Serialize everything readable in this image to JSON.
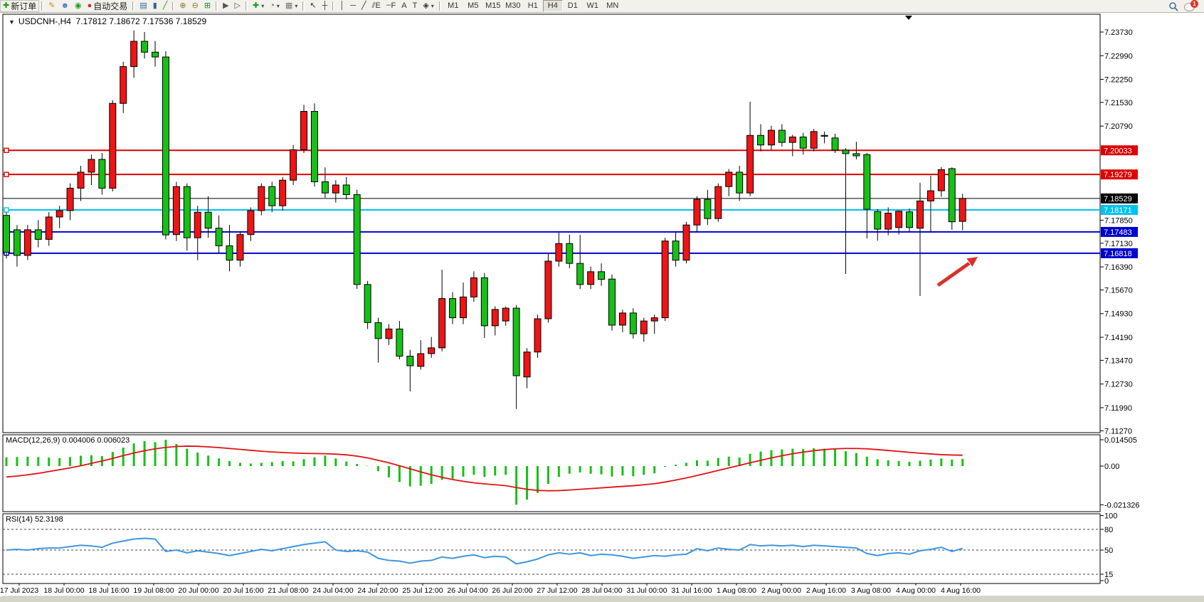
{
  "toolbar": {
    "buttons": [
      {
        "type": "button",
        "name": "new-order",
        "glyph": "✚",
        "glyph_color": "#1a9c1a",
        "label": "新订单"
      },
      {
        "type": "sep"
      },
      {
        "type": "button",
        "name": "styler",
        "glyph": "✎",
        "glyph_color": "#c09010"
      },
      {
        "type": "button",
        "name": "profile",
        "glyph": "☻",
        "glyph_color": "#4d82c4"
      },
      {
        "type": "button",
        "name": "signal",
        "glyph": "◉",
        "glyph_color": "#18a018"
      },
      {
        "type": "button",
        "name": "auto-trading",
        "glyph": "●",
        "glyph_color": "#c43022",
        "label": "自动交易"
      },
      {
        "type": "sep"
      },
      {
        "type": "button",
        "name": "bar-chart",
        "glyph": "▤",
        "glyph_color": "#336699"
      },
      {
        "type": "button",
        "name": "candlestick-chart",
        "glyph": "▮",
        "glyph_color": "#336699"
      },
      {
        "type": "button",
        "name": "line-chart",
        "glyph": "╱",
        "glyph_color": "#1a9c1a"
      },
      {
        "type": "sep"
      },
      {
        "type": "button",
        "name": "zoom-in",
        "glyph": "⊕",
        "glyph_color": "#8a7a20"
      },
      {
        "type": "button",
        "name": "zoom-out",
        "glyph": "⊖",
        "glyph_color": "#8a7a20"
      },
      {
        "type": "button",
        "name": "tile-windows",
        "glyph": "⊞",
        "glyph_color": "#2a8a2a"
      },
      {
        "type": "sep"
      },
      {
        "type": "button",
        "name": "auto-scroll",
        "glyph": "▶",
        "glyph_color": "#555"
      },
      {
        "type": "button",
        "name": "chart-shift",
        "glyph": "▷",
        "glyph_color": "#555"
      },
      {
        "type": "sep"
      },
      {
        "type": "button",
        "name": "indicators",
        "glyph": "✚",
        "glyph_color": "#1a9c1a",
        "caret": "▾"
      },
      {
        "type": "button",
        "name": "periods",
        "glyph": "◔",
        "glyph_color": "#2b5fa8",
        "caret": "▾"
      },
      {
        "type": "button",
        "name": "templates",
        "glyph": "▦",
        "glyph_color": "#777",
        "caret": "▾"
      },
      {
        "type": "sep"
      },
      {
        "type": "button",
        "name": "cursor",
        "glyph": "↖",
        "glyph_color": "#333"
      },
      {
        "type": "button",
        "name": "crosshair",
        "glyph": "┼",
        "glyph_color": "#333"
      },
      {
        "type": "sep"
      },
      {
        "type": "button",
        "name": "vertical-line",
        "glyph": "│",
        "glyph_color": "#333"
      },
      {
        "type": "button",
        "name": "horizontal-line",
        "glyph": "─",
        "glyph_color": "#333"
      },
      {
        "type": "button",
        "name": "trendline",
        "glyph": "╱",
        "glyph_color": "#333"
      },
      {
        "type": "button",
        "name": "equidistant-channel",
        "glyph": "⫽E",
        "glyph_color": "#333"
      },
      {
        "type": "button",
        "name": "fibonacci",
        "glyph": "┄F",
        "glyph_color": "#333"
      },
      {
        "type": "button",
        "name": "text",
        "glyph": "A",
        "glyph_color": "#333"
      },
      {
        "type": "button",
        "name": "text-label",
        "glyph": "T",
        "glyph_color": "#333"
      },
      {
        "type": "button",
        "name": "arrows",
        "glyph": "◈",
        "glyph_color": "#333",
        "caret": "▾"
      },
      {
        "type": "sep"
      }
    ],
    "timeframes": [
      "M1",
      "M5",
      "M15",
      "M30",
      "H1",
      "H4",
      "D1",
      "W1",
      "MN"
    ],
    "active_timeframe": "H4",
    "notification_badge": "1"
  },
  "chart": {
    "dropdown_marker": "▼",
    "title_symbol": "USDCNH-,H4",
    "title_ohlc": "7.17812 7.18672 7.17536 7.18529"
  },
  "chart_data": {
    "type": "candlestick",
    "symbol": "USDCNH-",
    "timeframe": "H4",
    "current_bar": {
      "open": 7.17812,
      "high": 7.18672,
      "low": 7.17536,
      "close": 7.18529
    },
    "colors": {
      "bull": "#f01414",
      "bear": "#16c116",
      "wick": "#000000",
      "hline_red": "#dd0000",
      "hline_cyan": "#00c2ee",
      "hline_blue": "#0000cc",
      "bid_line": "#3a3a3a",
      "tag_black": "#000000",
      "macd_hist": "#16c116",
      "macd_signal": "#e01212",
      "rsi_line": "#3e96e0",
      "arrow": "#d9302c"
    },
    "y_axis": {
      "ticks": [
        "7.23730",
        "7.22990",
        "7.22250",
        "7.21530",
        "7.20790",
        "7.17850",
        "7.17130",
        "7.16390",
        "7.15670",
        "7.14930",
        "7.14190",
        "7.13470",
        "7.12730",
        "7.11990",
        "7.11270"
      ]
    },
    "horizontal_lines": [
      {
        "price": 7.20033,
        "label": "7.20033",
        "color": "#dd0000",
        "text": "#ffffff"
      },
      {
        "price": 7.19279,
        "label": "7.19279",
        "color": "#dd0000",
        "text": "#ffffff"
      },
      {
        "price": 7.18529,
        "label": "7.18529",
        "color": "#000000",
        "text": "#ffffff",
        "bid": true
      },
      {
        "price": 7.18171,
        "label": "7.18171",
        "color": "#00c2ee",
        "text": "#ffffff"
      },
      {
        "price": 7.17483,
        "label": "7.17483",
        "color": "#0000cc",
        "text": "#ffffff"
      },
      {
        "price": 7.16818,
        "label": "7.16818",
        "color": "#0000cc",
        "text": "#ffffff"
      }
    ],
    "candles": [
      [
        7.18,
        7.181,
        7.1665,
        7.1685
      ],
      [
        7.1755,
        7.177,
        7.164,
        7.1675
      ],
      [
        7.1675,
        7.177,
        7.166,
        7.1755
      ],
      [
        7.1755,
        7.1785,
        7.17,
        7.1725
      ],
      [
        7.1725,
        7.181,
        7.1705,
        7.1795
      ],
      [
        7.1795,
        7.183,
        7.176,
        7.1815
      ],
      [
        7.1815,
        7.19,
        7.1785,
        7.1885
      ],
      [
        7.1885,
        7.1955,
        7.1845,
        7.1935
      ],
      [
        7.1935,
        7.199,
        7.1895,
        7.1975
      ],
      [
        7.1975,
        7.1995,
        7.1865,
        7.1885
      ],
      [
        7.1885,
        7.216,
        7.1875,
        7.215
      ],
      [
        7.215,
        7.228,
        7.212,
        7.2265
      ],
      [
        7.2265,
        7.2378,
        7.223,
        7.2344
      ],
      [
        7.2344,
        7.2373,
        7.229,
        7.231
      ],
      [
        7.231,
        7.2345,
        7.2265,
        7.2295
      ],
      [
        7.2295,
        7.2313,
        7.1725,
        7.1739
      ],
      [
        7.174,
        7.1905,
        7.172,
        7.189
      ],
      [
        7.189,
        7.19,
        7.169,
        7.173
      ],
      [
        7.173,
        7.183,
        7.166,
        7.181
      ],
      [
        7.181,
        7.186,
        7.173,
        7.176
      ],
      [
        7.176,
        7.18,
        7.168,
        7.1705
      ],
      [
        7.1705,
        7.177,
        7.1625,
        7.166
      ],
      [
        7.166,
        7.175,
        7.164,
        7.174
      ],
      [
        7.174,
        7.1825,
        7.172,
        7.1815
      ],
      [
        7.1815,
        7.19,
        7.18,
        7.189
      ],
      [
        7.189,
        7.1905,
        7.181,
        7.183
      ],
      [
        7.183,
        7.192,
        7.1815,
        7.191
      ],
      [
        7.191,
        7.202,
        7.1895,
        7.2005
      ],
      [
        7.2005,
        7.2145,
        7.1995,
        7.2125
      ],
      [
        7.2125,
        7.215,
        7.189,
        7.1905
      ],
      [
        7.1905,
        7.195,
        7.1855,
        7.187
      ],
      [
        7.187,
        7.191,
        7.184,
        7.1895
      ],
      [
        7.1895,
        7.192,
        7.185,
        7.1865
      ],
      [
        7.1865,
        7.188,
        7.157,
        7.1584
      ],
      [
        7.1584,
        7.1595,
        7.1445,
        7.1465
      ],
      [
        7.1465,
        7.148,
        7.134,
        7.1415
      ],
      [
        7.1415,
        7.146,
        7.1395,
        7.1445
      ],
      [
        7.1445,
        7.147,
        7.135,
        7.136
      ],
      [
        7.136,
        7.138,
        7.125,
        7.133
      ],
      [
        7.1328,
        7.141,
        7.1318,
        7.1368
      ],
      [
        7.1368,
        7.142,
        7.1355,
        7.1386
      ],
      [
        7.1386,
        7.163,
        7.1375,
        7.154
      ],
      [
        7.154,
        7.156,
        7.146,
        7.148
      ],
      [
        7.148,
        7.159,
        7.146,
        7.1545
      ],
      [
        7.1545,
        7.1625,
        7.153,
        7.1605
      ],
      [
        7.1605,
        7.162,
        7.1417,
        7.1455
      ],
      [
        7.1455,
        7.1516,
        7.1425,
        7.1506
      ],
      [
        7.147,
        7.1515,
        7.1455,
        7.151
      ],
      [
        7.151,
        7.152,
        7.1195,
        7.1299
      ],
      [
        7.1295,
        7.1385,
        7.126,
        7.1373
      ],
      [
        7.1373,
        7.149,
        7.1355,
        7.1477
      ],
      [
        7.1477,
        7.168,
        7.1465,
        7.1657
      ],
      [
        7.1657,
        7.1746,
        7.164,
        7.1712
      ],
      [
        7.1712,
        7.174,
        7.1635,
        7.165
      ],
      [
        7.165,
        7.1739,
        7.157,
        7.1584
      ],
      [
        7.1584,
        7.164,
        7.157,
        7.1624
      ],
      [
        7.1624,
        7.165,
        7.158,
        7.16
      ],
      [
        7.1601,
        7.1615,
        7.144,
        7.1457
      ],
      [
        7.1457,
        7.1505,
        7.1435,
        7.1495
      ],
      [
        7.1495,
        7.151,
        7.1415,
        7.143
      ],
      [
        7.143,
        7.148,
        7.1405,
        7.147
      ],
      [
        7.147,
        7.149,
        7.143,
        7.148
      ],
      [
        7.148,
        7.173,
        7.147,
        7.172
      ],
      [
        7.172,
        7.175,
        7.164,
        7.166
      ],
      [
        7.166,
        7.178,
        7.165,
        7.177
      ],
      [
        7.177,
        7.186,
        7.175,
        7.185
      ],
      [
        7.185,
        7.188,
        7.177,
        7.179
      ],
      [
        7.179,
        7.19,
        7.178,
        7.189
      ],
      [
        7.189,
        7.1945,
        7.186,
        7.1935
      ],
      [
        7.1935,
        7.1955,
        7.1845,
        7.187
      ],
      [
        7.187,
        7.2155,
        7.186,
        7.205
      ],
      [
        7.205,
        7.2085,
        7.2,
        7.202
      ],
      [
        7.202,
        7.208,
        7.2005,
        7.2066
      ],
      [
        7.2066,
        7.2085,
        7.2015,
        7.2028
      ],
      [
        7.2028,
        7.2052,
        7.1985,
        7.2045
      ],
      [
        7.2045,
        7.2058,
        7.199,
        7.201
      ],
      [
        7.201,
        7.207,
        7.2,
        7.2062
      ],
      [
        7.205,
        7.2062,
        7.2025,
        7.2048
      ],
      [
        7.2042,
        7.2055,
        7.1995,
        7.2004
      ],
      [
        7.2004,
        7.201,
        7.1617,
        7.1993
      ],
      [
        7.1993,
        7.203,
        7.1975,
        7.1986
      ],
      [
        7.199,
        7.1995,
        7.1728,
        7.1819
      ],
      [
        7.1812,
        7.182,
        7.1721,
        7.1757
      ],
      [
        7.1757,
        7.1825,
        7.1738,
        7.1807
      ],
      [
        7.1762,
        7.1815,
        7.174,
        7.1813
      ],
      [
        7.1811,
        7.1822,
        7.175,
        7.1762
      ],
      [
        7.176,
        7.1902,
        7.1548,
        7.1845
      ],
      [
        7.1845,
        7.1924,
        7.1746,
        7.1877
      ],
      [
        7.1877,
        7.1951,
        7.1858,
        7.1943
      ],
      [
        7.1946,
        7.195,
        7.1755,
        7.178
      ],
      [
        7.17812,
        7.18672,
        7.17536,
        7.18529
      ]
    ],
    "macd": {
      "label": "MACD(12,26,9) 0.004006 0.006023",
      "params": "12,26,9",
      "main_value": 0.004006,
      "signal_value": 0.006023,
      "axis_labels": [
        "0.014505",
        "0.00",
        "-0.021326"
      ],
      "histogram": [
        0.0048,
        0.005,
        0.0052,
        0.005,
        0.0047,
        0.0044,
        0.005,
        0.0057,
        0.006,
        0.0055,
        0.0078,
        0.0102,
        0.0125,
        0.0138,
        0.0132,
        0.0145,
        0.0122,
        0.0096,
        0.0075,
        0.0058,
        0.0042,
        0.0028,
        0.0018,
        0.0014,
        0.0018,
        0.0022,
        0.0028,
        0.0026,
        0.0038,
        0.0048,
        0.0058,
        0.0042,
        0.0025,
        0.0012,
        0.0002,
        -0.0028,
        -0.0062,
        -0.0088,
        -0.0112,
        -0.0108,
        -0.0098,
        -0.0076,
        -0.007,
        -0.0058,
        -0.0048,
        -0.006,
        -0.0052,
        -0.0048,
        -0.0213,
        -0.0185,
        -0.0148,
        -0.0098,
        -0.006,
        -0.0042,
        -0.0035,
        -0.0042,
        -0.0046,
        -0.0058,
        -0.0052,
        -0.0056,
        -0.0048,
        -0.004,
        -0.0005,
        0.0008,
        0.0018,
        0.0032,
        0.003,
        0.0045,
        0.0052,
        0.0048,
        0.0068,
        0.008,
        0.0088,
        0.0092,
        0.0096,
        0.0094,
        0.0098,
        0.0096,
        0.0092,
        0.0082,
        0.0072,
        0.0052,
        0.0038,
        0.0032,
        0.0028,
        0.0024,
        0.003,
        0.0036,
        0.0042,
        0.0036,
        0.004
      ],
      "signal": [
        -0.006,
        -0.0055,
        -0.0048,
        -0.004,
        -0.003,
        -0.002,
        -0.001,
        0.0002,
        0.0015,
        0.0028,
        0.0042,
        0.0058,
        0.0072,
        0.0085,
        0.0095,
        0.0103,
        0.0108,
        0.011,
        0.0109,
        0.0106,
        0.0102,
        0.0097,
        0.0092,
        0.0087,
        0.0082,
        0.0078,
        0.0075,
        0.0072,
        0.007,
        0.0069,
        0.0068,
        0.0066,
        0.0062,
        0.0055,
        0.0045,
        0.0032,
        0.0018,
        0.0002,
        -0.0015,
        -0.0032,
        -0.0048,
        -0.0062,
        -0.0074,
        -0.0084,
        -0.0092,
        -0.0098,
        -0.0103,
        -0.0108,
        -0.0118,
        -0.0128,
        -0.0134,
        -0.0136,
        -0.0135,
        -0.0132,
        -0.0128,
        -0.0124,
        -0.012,
        -0.0116,
        -0.0112,
        -0.0108,
        -0.0103,
        -0.0097,
        -0.0088,
        -0.0077,
        -0.0065,
        -0.0052,
        -0.0038,
        -0.0024,
        -0.001,
        0.0004,
        0.0018,
        0.0032,
        0.0045,
        0.0057,
        0.0068,
        0.0077,
        0.0085,
        0.0091,
        0.0095,
        0.0097,
        0.0097,
        0.0095,
        0.0091,
        0.0086,
        0.0081,
        0.0076,
        0.0071,
        0.0067,
        0.0063,
        0.0061,
        0.006
      ]
    },
    "rsi": {
      "label": "RSI(14) 52.3198",
      "period": 14,
      "value": 52.3198,
      "levels": [
        80,
        50,
        15
      ],
      "axis_labels": [
        "100",
        "80",
        "50",
        "15",
        "0"
      ],
      "series": [
        50,
        51,
        50,
        52,
        53,
        53,
        55,
        57,
        56,
        54,
        60,
        63,
        66,
        67,
        66,
        48,
        50,
        46,
        49,
        47,
        45,
        42,
        45,
        48,
        51,
        49,
        52,
        55,
        58,
        60,
        62,
        50,
        48,
        49,
        47,
        38,
        35,
        34,
        31,
        34,
        35,
        40,
        38,
        41,
        43,
        39,
        41,
        40,
        30,
        33,
        37,
        43,
        46,
        44,
        46,
        42,
        44,
        43,
        41,
        38,
        40,
        42,
        41,
        43,
        44,
        52,
        49,
        53,
        51,
        50,
        58,
        56,
        57,
        56,
        57,
        55,
        57,
        56,
        55,
        54,
        53,
        45,
        42,
        45,
        46,
        44,
        49,
        51,
        54,
        48,
        52.3
      ]
    },
    "x_labels": [
      "17 Jul 2023",
      "18 Jul 00:00",
      "18 Jul 16:00",
      "19 Jul 08:00",
      "20 Jul 00:00",
      "20 Jul 16:00",
      "21 Jul 08:00",
      "24 Jul 04:00",
      "24 Jul 20:00",
      "25 Jul 12:00",
      "26 Jul 04:00",
      "26 Jul 20:00",
      "27 Jul 12:00",
      "28 Jul 04:00",
      "31 Jul 00:00",
      "31 Jul 16:00",
      "1 Aug 08:00",
      "2 Aug 00:00",
      "2 Aug 16:00",
      "3 Aug 08:00",
      "4 Aug 00:00",
      "4 Aug 16:00"
    ],
    "annotation_arrow": {
      "direction": "up-right"
    }
  }
}
